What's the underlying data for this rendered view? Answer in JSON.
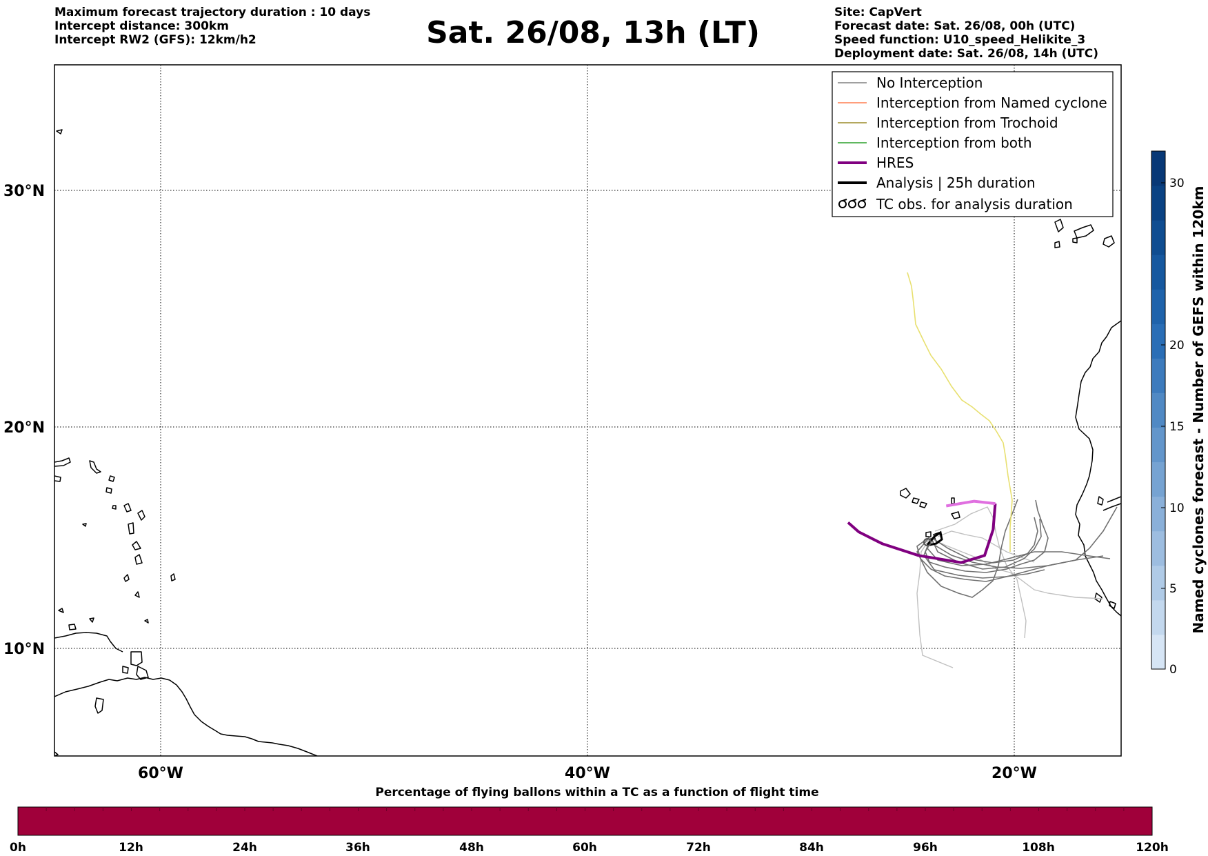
{
  "header": {
    "left_lines": [
      "Maximum forecast trajectory duration : 10 days",
      "Intercept distance: 300km",
      "Intercept RW2 (GFS):  12km/h2"
    ],
    "title": "Sat. 26/08, 13h (LT)",
    "right_lines": [
      "Site: CapVert",
      "Forecast date: Sat. 26/08, 00h (UTC)",
      "Speed function: U10_speed_Helikite_3",
      "Deployment date: Sat. 26/08, 14h (UTC)"
    ]
  },
  "map": {
    "lon_labels": [
      "60°W",
      "40°W",
      "20°W"
    ],
    "lat_labels": [
      "30°N",
      "20°N",
      "10°N"
    ],
    "extent": {
      "lon_min": -65,
      "lon_max": -15,
      "lat_min": 5.4,
      "lat_max": 34.7
    }
  },
  "legend": {
    "items": [
      {
        "label": "No Interception",
        "color": "#808080",
        "style": "thin"
      },
      {
        "label": "Interception from Named cyclone",
        "color": "#ff7f50",
        "style": "thin"
      },
      {
        "label": "Interception from Trochoid",
        "color": "#9b8b2a",
        "style": "thin"
      },
      {
        "label": "Interception from both",
        "color": "#2ca02c",
        "style": "thin"
      },
      {
        "label": "HRES",
        "color": "#800080",
        "style": "thick"
      },
      {
        "label": "Analysis | 25h duration",
        "color": "#000000",
        "style": "thick"
      },
      {
        "label": "TC obs. for analysis duration",
        "color": "#000000",
        "style": "symbol"
      }
    ]
  },
  "colorbar_vertical": {
    "label": "Named cyclones forecast - Number of GEFS within 120km",
    "ticks": [
      "0",
      "5",
      "10",
      "15",
      "20",
      "30"
    ],
    "colors": [
      "#d6e5f5",
      "#c3d8ee",
      "#b0cbe7",
      "#9dbde0",
      "#8ab0d9",
      "#76a3d2",
      "#6396cb",
      "#5089c4",
      "#3d7bbd",
      "#2a6eb6",
      "#1f63ab",
      "#16589f",
      "#0f4d91",
      "#0a4283",
      "#083876"
    ]
  },
  "colorbar_horizontal": {
    "title": "Percentage of flying ballons within a TC as a function of flight time",
    "ticks": [
      "0h",
      "12h",
      "24h",
      "36h",
      "48h",
      "60h",
      "72h",
      "84h",
      "96h",
      "108h",
      "120h"
    ],
    "color": "#a0003a"
  },
  "chart_data": {
    "type": "trajectory-map",
    "series": [
      {
        "name": "HRES",
        "color": "#800080",
        "lon": [
          -20.9,
          -21.0,
          -21.4,
          -22.5,
          -24.5,
          -26.2,
          -27.3,
          -27.8
        ],
        "lat": [
          16.1,
          15.0,
          13.9,
          13.6,
          13.9,
          14.4,
          14.9,
          15.3
        ]
      },
      {
        "name": "HRES",
        "color": "#e070e0",
        "lon": [
          -20.9,
          -21.9,
          -23.2
        ],
        "lat": [
          16.1,
          16.2,
          16.0
        ]
      }
    ]
  }
}
